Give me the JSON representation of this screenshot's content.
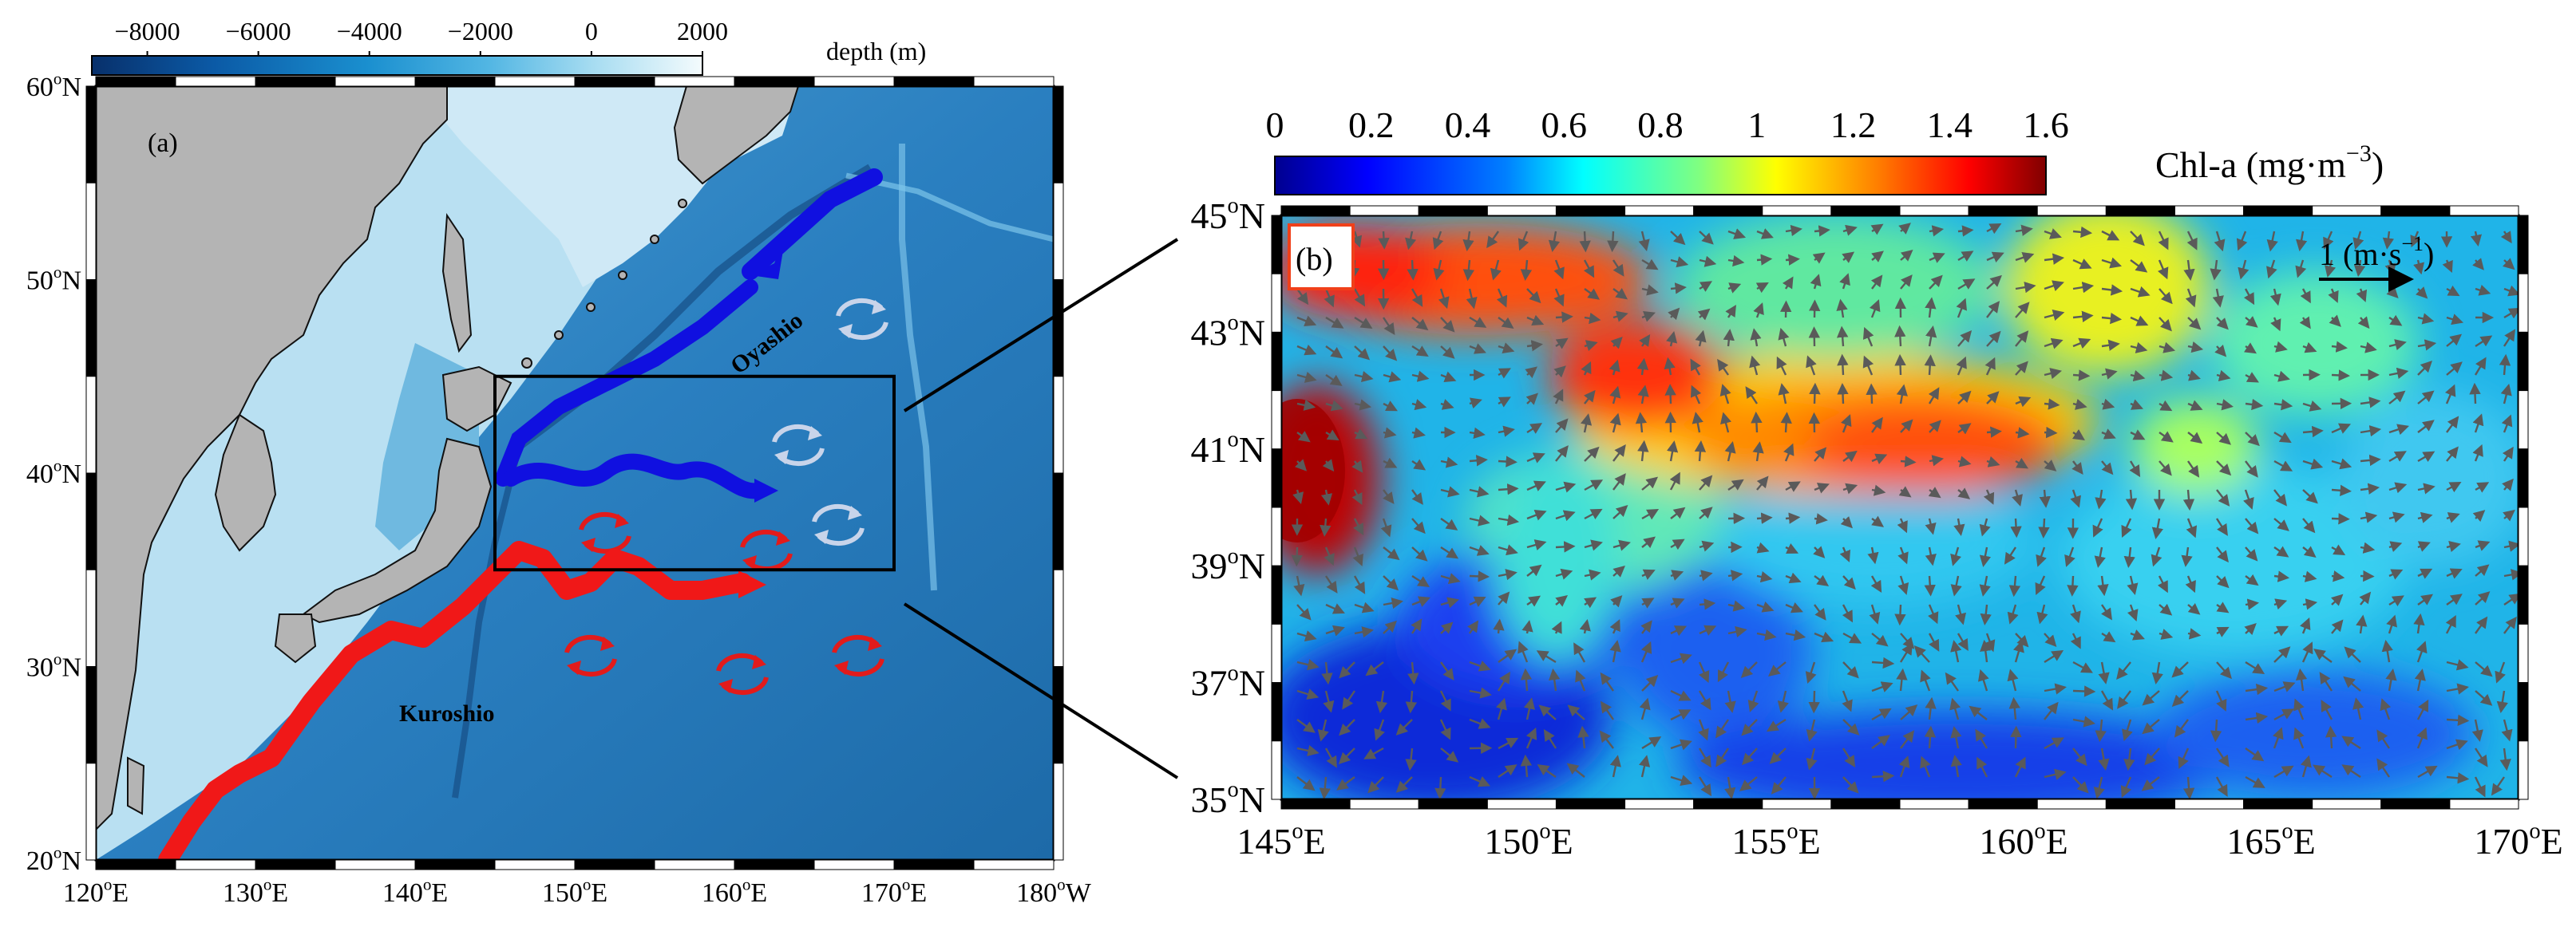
{
  "panel_a": {
    "label": "(a)",
    "colorbar": {
      "ticks": [
        "−8000",
        "−6000",
        "−4000",
        "−2000",
        "0",
        "2000"
      ],
      "tick_values": [
        -8000,
        -6000,
        -4000,
        -2000,
        0,
        2000
      ],
      "range": [
        -9000,
        2000
      ],
      "label": "depth (m)",
      "colors": [
        "#08306b",
        "#0b5aa6",
        "#1a8fcf",
        "#52b6e3",
        "#a6dcf1",
        "#f4fbfd"
      ]
    },
    "lat_labels": [
      {
        "v": 60,
        "num": "60",
        "sup": "o",
        "hemi": "N"
      },
      {
        "v": 50,
        "num": "50",
        "sup": "o",
        "hemi": "N"
      },
      {
        "v": 40,
        "num": "40",
        "sup": "o",
        "hemi": "N"
      },
      {
        "v": 30,
        "num": "30",
        "sup": "o",
        "hemi": "N"
      },
      {
        "v": 20,
        "num": "20",
        "sup": "o",
        "hemi": "N"
      }
    ],
    "lon_labels": [
      {
        "v": 120,
        "num": "120",
        "sup": "o",
        "hemi": "E"
      },
      {
        "v": 130,
        "num": "130",
        "sup": "o",
        "hemi": "E"
      },
      {
        "v": 140,
        "num": "140",
        "sup": "o",
        "hemi": "E"
      },
      {
        "v": 150,
        "num": "150",
        "sup": "o",
        "hemi": "E"
      },
      {
        "v": 160,
        "num": "160",
        "sup": "o",
        "hemi": "E"
      },
      {
        "v": 170,
        "num": "170",
        "sup": "o",
        "hemi": "E"
      },
      {
        "v": 180,
        "num": "180",
        "sup": "o",
        "hemi": "W"
      }
    ],
    "extent": {
      "lon": [
        120,
        180
      ],
      "lat": [
        20,
        60
      ]
    },
    "study_box": {
      "lon": [
        145,
        170
      ],
      "lat": [
        35,
        45
      ]
    },
    "currents": [
      {
        "name": "Oyashio",
        "color": "#1010e0"
      },
      {
        "name": "Kuroshio",
        "color": "#f01818"
      }
    ],
    "colors": {
      "land": "#b4b4b4",
      "ocean_deep": "#1d6aa8",
      "ocean_mid": "#3d92c8",
      "warm_eddy": "#e21b1b",
      "cold_eddy": "#c8d4ea"
    }
  },
  "panel_b": {
    "label": "(b)",
    "colorbar": {
      "ticks": [
        "0",
        "0.2",
        "0.4",
        "0.6",
        "0.8",
        "1",
        "1.2",
        "1.4",
        "1.6"
      ],
      "tick_values": [
        0,
        0.2,
        0.4,
        0.6,
        0.8,
        1,
        1.2,
        1.4,
        1.6
      ],
      "range": [
        0,
        1.6
      ],
      "label_main": "Chl-a (mg·m",
      "label_sup": "−3",
      "label_end": ")",
      "colors": [
        "#00008f",
        "#0000ff",
        "#0080ff",
        "#00ffff",
        "#80ff80",
        "#ffff00",
        "#ff8000",
        "#ff0000",
        "#800000"
      ]
    },
    "lat_labels": [
      {
        "v": 45,
        "num": "45",
        "sup": "o",
        "hemi": "N"
      },
      {
        "v": 43,
        "num": "43",
        "sup": "o",
        "hemi": "N"
      },
      {
        "v": 41,
        "num": "41",
        "sup": "o",
        "hemi": "N"
      },
      {
        "v": 39,
        "num": "39",
        "sup": "o",
        "hemi": "N"
      },
      {
        "v": 37,
        "num": "37",
        "sup": "o",
        "hemi": "N"
      },
      {
        "v": 35,
        "num": "35",
        "sup": "o",
        "hemi": "N"
      }
    ],
    "lon_labels": [
      {
        "v": 145,
        "num": "145",
        "sup": "o",
        "hemi": "E"
      },
      {
        "v": 150,
        "num": "150",
        "sup": "o",
        "hemi": "E"
      },
      {
        "v": 155,
        "num": "155",
        "sup": "o",
        "hemi": "E"
      },
      {
        "v": 160,
        "num": "160",
        "sup": "o",
        "hemi": "E"
      },
      {
        "v": 165,
        "num": "165",
        "sup": "o",
        "hemi": "E"
      },
      {
        "v": 170,
        "num": "170",
        "sup": "o",
        "hemi": "E"
      }
    ],
    "extent": {
      "lon": [
        145,
        170
      ],
      "lat": [
        35,
        45
      ]
    },
    "vector_scale": {
      "label_main": "1 (m·s",
      "label_sup": "−1",
      "label_end": ")",
      "value": 1
    },
    "colors": {
      "vector": "#5a5a5a",
      "land": "#c8c8c8"
    }
  }
}
